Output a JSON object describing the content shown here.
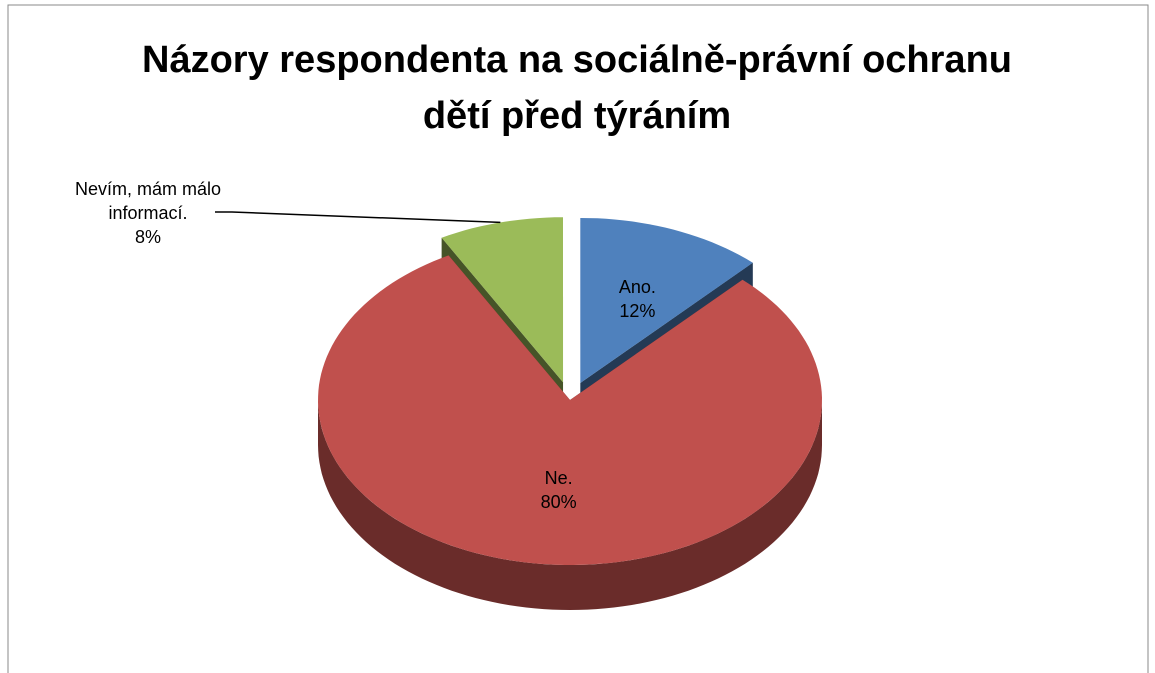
{
  "chart_data": {
    "type": "pie",
    "title": "Názory respondenta na sociálně-právní ochranu dětí před týráním",
    "categories": [
      "Ano.",
      "Ne.",
      "Nevím, mám málo informací."
    ],
    "values": [
      12,
      80,
      8
    ],
    "value_labels": [
      "12%",
      "80%",
      "8%"
    ],
    "colors": [
      "#4f81bd",
      "#c0504d",
      "#9bbb59"
    ]
  }
}
